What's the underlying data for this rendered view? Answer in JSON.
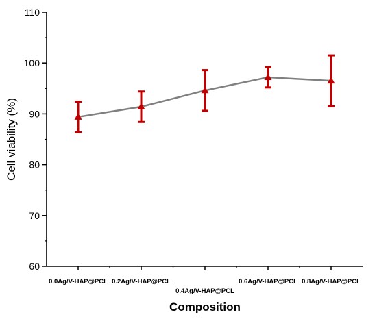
{
  "chart_data": {
    "type": "line",
    "title": "",
    "xlabel": "Composition",
    "ylabel": "Cell viability (%)",
    "categories": [
      "0.0Ag/V-HAP@PCL",
      "0.2Ag/V-HAP@PCL",
      "0.4Ag/V-HAP@PCL",
      "0.6Ag/V-HAP@PCL",
      "0.8Ag/V-HAP@PCL"
    ],
    "series": [
      {
        "values": [
          89.4,
          91.4,
          94.6,
          97.2,
          96.5
        ],
        "error": [
          3.0,
          3.0,
          4.0,
          2.0,
          5.0
        ]
      }
    ],
    "ylim": [
      60,
      110
    ],
    "yticks": [
      60,
      70,
      80,
      90,
      100,
      110
    ],
    "grid": false,
    "legend": "none",
    "colors": {
      "line": "#808080",
      "marker": "#c00000",
      "errorbar": "#c00000",
      "axis": "#000000"
    }
  }
}
